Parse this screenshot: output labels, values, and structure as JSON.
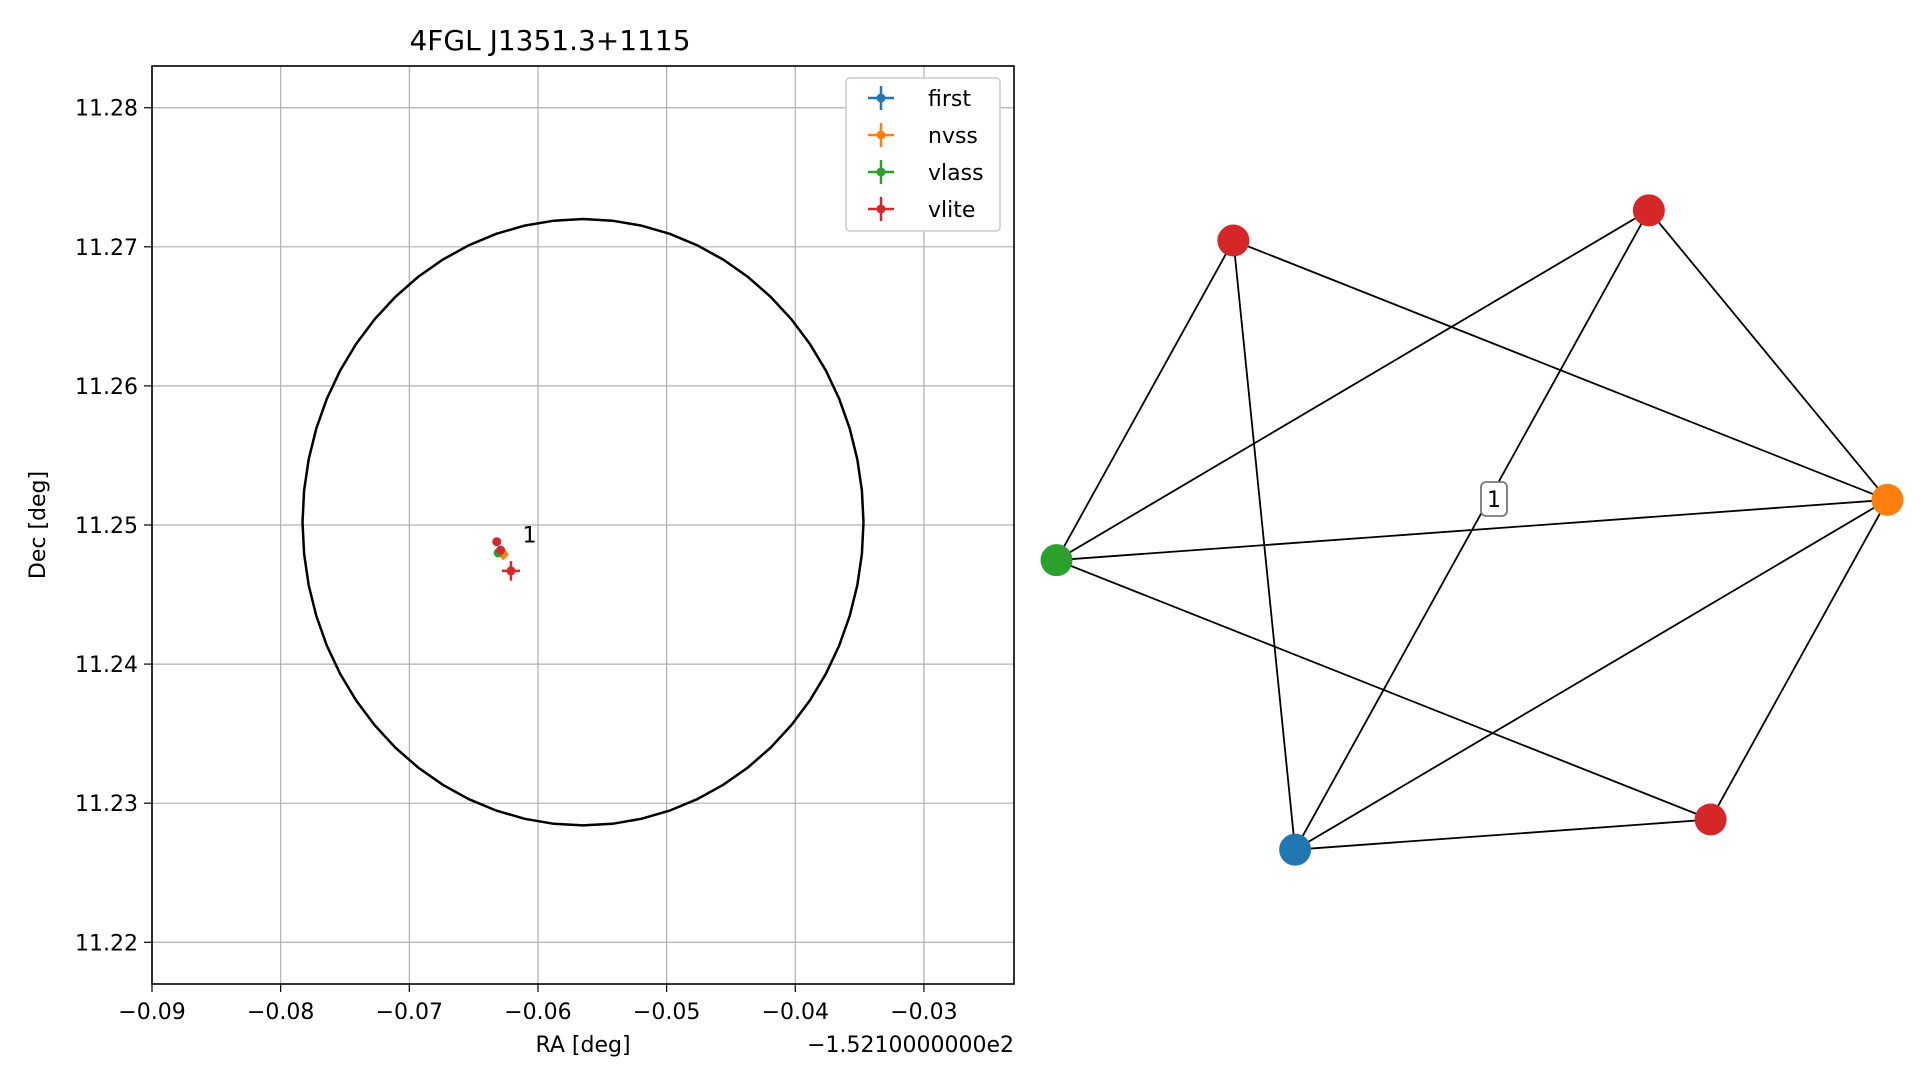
{
  "chart_data": [
    {
      "type": "scatter",
      "title": "4FGL J1351.3+1115",
      "xlabel": "RA [deg]",
      "ylabel": "Dec [deg]",
      "x_offset_text": "−1.5210000000e2",
      "xlim": [
        -0.09,
        -0.023
      ],
      "ylim": [
        11.217,
        11.283
      ],
      "x_ticks": [
        -0.09,
        -0.08,
        -0.07,
        -0.06,
        -0.05,
        -0.04,
        -0.03
      ],
      "x_tick_labels": [
        "−0.09",
        "−0.08",
        "−0.07",
        "−0.06",
        "−0.05",
        "−0.04",
        "−0.03"
      ],
      "y_ticks": [
        11.22,
        11.23,
        11.24,
        11.25,
        11.26,
        11.27,
        11.28
      ],
      "y_tick_labels": [
        "11.22",
        "11.23",
        "11.24",
        "11.25",
        "11.26",
        "11.27",
        "11.28"
      ],
      "grid": true,
      "legend_position": "top-right",
      "circle": {
        "center": [
          -0.0565,
          11.2502
        ],
        "radius_x": 0.0218,
        "radius_y": 0.0218
      },
      "series": [
        {
          "name": "first",
          "color": "#1f77b4",
          "points": [
            {
              "x": -0.0629,
              "y": 11.2481,
              "xerr": 0.0003,
              "yerr": 0.0003
            }
          ]
        },
        {
          "name": "nvss",
          "color": "#ff7f0e",
          "points": [
            {
              "x": -0.0627,
              "y": 11.2479,
              "xerr": 0.0004,
              "yerr": 0.0004
            }
          ]
        },
        {
          "name": "vlass",
          "color": "#2ca02c",
          "points": [
            {
              "x": -0.0631,
              "y": 11.248,
              "xerr": 0.0003,
              "yerr": 0.0003
            }
          ]
        },
        {
          "name": "vlite",
          "color": "#d62728",
          "points": [
            {
              "x": -0.0632,
              "y": 11.2488,
              "xerr": 0.0002,
              "yerr": 0.0002
            },
            {
              "x": -0.0629,
              "y": 11.2482,
              "xerr": 0.0002,
              "yerr": 0.0002
            },
            {
              "x": -0.0621,
              "y": 11.2467,
              "xerr": 0.0007,
              "yerr": 0.0007
            }
          ]
        }
      ],
      "annotations": [
        {
          "text": "1",
          "x": -0.0612,
          "y": 11.2493
        }
      ]
    },
    {
      "type": "network",
      "nodes": [
        {
          "id": "n1",
          "color": "#d62728"
        },
        {
          "id": "n2",
          "color": "#d62728"
        },
        {
          "id": "n3",
          "color": "#2ca02c"
        },
        {
          "id": "n4",
          "color": "#ff7f0e"
        },
        {
          "id": "n5",
          "color": "#1f77b4"
        },
        {
          "id": "n6",
          "color": "#d62728"
        }
      ],
      "edges": [
        [
          "n1",
          "n3"
        ],
        [
          "n1",
          "n5"
        ],
        [
          "n1",
          "n4"
        ],
        [
          "n2",
          "n3"
        ],
        [
          "n2",
          "n5"
        ],
        [
          "n2",
          "n4"
        ],
        [
          "n3",
          "n4"
        ],
        [
          "n3",
          "n6"
        ],
        [
          "n5",
          "n4"
        ],
        [
          "n5",
          "n6"
        ],
        [
          "n4",
          "n6"
        ]
      ],
      "label": "1"
    }
  ]
}
